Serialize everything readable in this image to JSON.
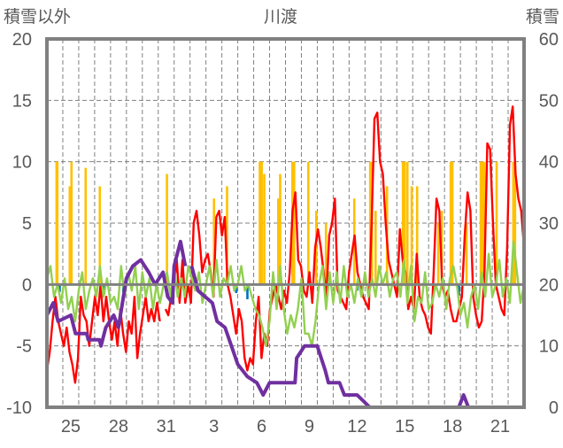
{
  "chart_data": {
    "type": "line",
    "title": "川渡",
    "ylabel_left": "積雪以外",
    "ylabel_right": "積雪",
    "ylim_left": [
      -10,
      20
    ],
    "ylim_right": [
      0,
      60
    ],
    "yticks_left": [
      "20",
      "15",
      "10",
      "5",
      "0",
      "-5",
      "-10"
    ],
    "yticks_right": [
      "60",
      "50",
      "40",
      "30",
      "20",
      "10",
      "0"
    ],
    "x_unit": "days since Jan 24 00:00",
    "xlim": [
      0,
      30
    ],
    "xticks": [
      {
        "day": 1.5,
        "label": "25"
      },
      {
        "day": 4.5,
        "label": "28"
      },
      {
        "day": 7.5,
        "label": "31"
      },
      {
        "day": 10.5,
        "label": "3"
      },
      {
        "day": 13.5,
        "label": "6"
      },
      {
        "day": 16.5,
        "label": "9"
      },
      {
        "day": 19.5,
        "label": "12"
      },
      {
        "day": 22.5,
        "label": "15"
      },
      {
        "day": 25.5,
        "label": "18"
      },
      {
        "day": 28.5,
        "label": "21"
      }
    ],
    "grid": {
      "horizontal": true,
      "vertical_daily": true
    },
    "legend": "none",
    "colors": {
      "red": "#ff0000",
      "green": "#92d050",
      "purple": "#7030a0",
      "orange": "#ffc000",
      "blue": "#0070c0",
      "axis": "#808080"
    },
    "series": [
      {
        "color": "orange",
        "type": "bar",
        "axis": "left",
        "points": [
          [
            0.6,
            10
          ],
          [
            0.65,
            10
          ],
          [
            1.43,
            8
          ],
          [
            1.54,
            10
          ],
          [
            2.43,
            9.5
          ],
          [
            3.32,
            8
          ],
          [
            7.54,
            9
          ],
          [
            10.5,
            7
          ],
          [
            11.32,
            8
          ],
          [
            13.38,
            10
          ],
          [
            13.5,
            10
          ],
          [
            13.66,
            9
          ],
          [
            14.54,
            7
          ],
          [
            14.66,
            9
          ],
          [
            15.43,
            10
          ],
          [
            15.54,
            10
          ],
          [
            16.43,
            10
          ],
          [
            16.93,
            6
          ],
          [
            17.54,
            5
          ],
          [
            19.32,
            7
          ],
          [
            20.32,
            10
          ],
          [
            20.43,
            10
          ],
          [
            20.66,
            6
          ],
          [
            21.38,
            8
          ],
          [
            22.38,
            10
          ],
          [
            22.49,
            10
          ],
          [
            22.66,
            10
          ],
          [
            22.93,
            8
          ],
          [
            23.27,
            8
          ],
          [
            24.6,
            5
          ],
          [
            24.82,
            6
          ],
          [
            25.38,
            10
          ],
          [
            25.49,
            10
          ],
          [
            26.38,
            5
          ],
          [
            27.27,
            10
          ],
          [
            27.38,
            10
          ],
          [
            27.49,
            10
          ],
          [
            28.27,
            10
          ],
          [
            29.32,
            10
          ],
          [
            29.43,
            10
          ]
        ]
      },
      {
        "color": "blue",
        "type": "bar",
        "axis": "left",
        "points": [
          [
            0.8,
            -0.6
          ],
          [
            3.6,
            -0.8
          ],
          [
            4.8,
            -0.6
          ],
          [
            11.9,
            -0.7
          ],
          [
            12.6,
            -1.2
          ],
          [
            14.4,
            -0.5
          ],
          [
            16.0,
            -0.6
          ],
          [
            19.5,
            -0.5
          ],
          [
            25.9,
            -0.9
          ]
        ]
      },
      {
        "color": "red",
        "type": "line",
        "axis": "left",
        "start": 0,
        "end": 30,
        "values": [
          -7,
          -5.5,
          -3,
          -1,
          -3,
          -4,
          -5,
          -3.5,
          -5.5,
          -6.5,
          -8,
          -6,
          -1,
          -2.5,
          -3,
          -5,
          -3,
          -1,
          -2.5,
          0,
          -3,
          -1,
          -3,
          -4.5,
          -3,
          -5,
          -2,
          -4,
          -5.5,
          -3,
          -4,
          -1,
          -6,
          -4,
          -2.5,
          -1,
          -3,
          -2,
          -3,
          -1.5,
          -3,
          null,
          -2,
          -2.5,
          -1,
          0,
          2,
          -1.5,
          2,
          -1.5,
          0,
          -1.5,
          5,
          6,
          4,
          1,
          2,
          2.5,
          1,
          -1,
          5.5,
          6,
          4,
          5.5,
          0,
          -1,
          -2.5,
          -4,
          -2,
          -3,
          -6,
          -7,
          -6,
          -6.5,
          -3,
          -1,
          -6,
          -4,
          -5,
          -2,
          -1,
          0,
          -1,
          -2,
          -0.5,
          -1.5,
          1,
          6,
          7.5,
          2,
          1.5,
          -0.5,
          -1,
          1,
          -1.5,
          3,
          4.5,
          3,
          1,
          -1,
          4,
          5,
          7,
          -0.5,
          -1,
          -1.5,
          -2,
          1,
          2.5,
          4,
          1,
          0,
          -1,
          -1.5,
          -2,
          5,
          13.5,
          14,
          10,
          9,
          5,
          2,
          1,
          0,
          -1,
          4.5,
          2,
          1,
          -2,
          -1,
          -2,
          2.5,
          -1,
          -2,
          -2.5,
          -3.5,
          -4,
          1,
          7,
          6,
          0,
          -1,
          -0.5,
          -2,
          -3,
          -3,
          -2,
          -1,
          4,
          7.5,
          6,
          -1,
          -2.5,
          -3.5,
          -3,
          1,
          11.5,
          11,
          5,
          0,
          -1,
          -2,
          -2.5,
          3,
          13,
          14.5,
          9,
          7,
          6,
          3
        ]
      },
      {
        "color": "green",
        "type": "line",
        "axis": "left",
        "start": 0,
        "end": 30,
        "values": [
          0.5,
          1.5,
          -1,
          0,
          -1.5,
          0.5,
          -2,
          -1,
          -3,
          -0.5,
          1,
          -2,
          -0.5,
          0.5,
          -1,
          1.5,
          -1,
          0.5,
          -1.5,
          -1,
          -2,
          1.5,
          -1,
          1,
          -0.5,
          1.5,
          -2,
          1,
          -1,
          0.5,
          -2,
          0,
          -1.5,
          0,
          1,
          -1,
          1.5,
          -1,
          0.5,
          -1,
          1.5,
          0.5,
          -0.5,
          1,
          -1.5,
          0,
          1.5,
          -1,
          2,
          -1,
          0.5,
          0,
          1.5,
          -0.5,
          0,
          1.5,
          -0.5,
          0,
          -1,
          -2,
          -2.5,
          -3.5,
          -5,
          -3,
          1,
          -2,
          1.5,
          -2,
          -4,
          -2.5,
          -3.5,
          -2,
          0.5,
          -4,
          -4,
          -5,
          -3,
          0,
          1.5,
          -2,
          1,
          -1.5,
          1,
          -1.5,
          1.5,
          -1,
          0,
          -1.5,
          0.5,
          -1,
          1,
          -1,
          0.5,
          -1,
          1.5,
          0,
          1,
          -1,
          0.5,
          1,
          -1,
          2,
          -1.5,
          1.5,
          -3,
          -1,
          -1.5,
          1,
          -2,
          -1.5,
          0,
          -1,
          0.5,
          -2,
          0.5,
          1.5,
          0,
          -2.5,
          -1.5,
          -3.5,
          -1,
          0,
          -2,
          1,
          -1,
          2.5,
          -1,
          0,
          2,
          -1,
          0.5,
          -1.5,
          3.5,
          1,
          -1.5,
          0
        ]
      },
      {
        "color": "purple",
        "type": "line",
        "axis": "right",
        "points": [
          [
            0,
            15
          ],
          [
            0.4,
            17
          ],
          [
            0.7,
            14
          ],
          [
            1.5,
            15
          ],
          [
            1.8,
            12
          ],
          [
            2.5,
            12
          ],
          [
            2.6,
            11
          ],
          [
            3.3,
            11
          ],
          [
            3.4,
            10
          ],
          [
            3.7,
            13
          ],
          [
            4.2,
            15
          ],
          [
            4.5,
            13
          ],
          [
            5.0,
            21
          ],
          [
            5.4,
            23
          ],
          [
            5.9,
            24
          ],
          [
            6.4,
            22
          ],
          [
            6.8,
            20
          ],
          [
            7.3,
            22
          ],
          [
            7.6,
            18
          ],
          [
            7.9,
            17
          ],
          [
            8.0,
            23
          ],
          [
            8.4,
            27
          ],
          [
            8.7,
            23
          ],
          null,
          [
            9.1,
            23
          ],
          [
            9.5,
            19
          ],
          [
            10.4,
            17
          ],
          [
            10.7,
            14
          ],
          [
            11.2,
            13
          ],
          [
            11.6,
            10
          ],
          [
            12.0,
            7
          ],
          [
            12.6,
            5
          ],
          [
            13.2,
            4
          ],
          [
            13.6,
            2
          ],
          [
            14.0,
            4
          ],
          [
            14.9,
            4
          ],
          [
            15.6,
            4
          ],
          [
            15.7,
            8
          ],
          [
            16.2,
            10
          ],
          [
            17.0,
            10
          ],
          [
            17.5,
            6
          ],
          [
            17.7,
            4
          ],
          [
            18.4,
            4
          ],
          [
            18.7,
            2
          ],
          [
            19.5,
            2
          ],
          [
            20.3,
            0
          ],
          [
            25.9,
            0
          ],
          [
            26.2,
            2
          ],
          [
            26.5,
            0
          ],
          [
            30,
            0
          ]
        ]
      }
    ]
  }
}
